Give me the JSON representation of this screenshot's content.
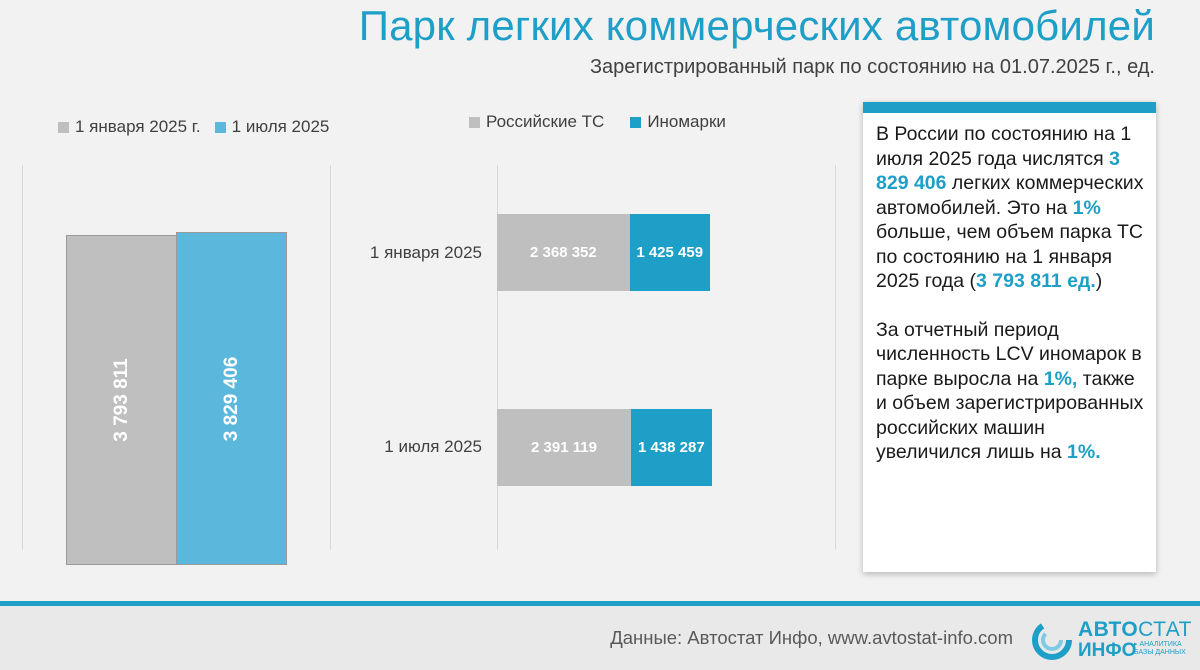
{
  "header": {
    "title": "Парк легких коммерческих автомобилей",
    "subtitle": "Зарегистрированный парк по состоянию на 01.07.2025 г., ед."
  },
  "colors": {
    "accent": "#1e9fc7",
    "gray_bar": "#bfbfbf",
    "light_blue_bar": "#5bb8dc",
    "dark_blue_bar": "#1e9fc7"
  },
  "chart_data": [
    {
      "type": "bar",
      "orientation": "vertical",
      "categories": [
        "1 января 2025 г.",
        "1 июля 2025"
      ],
      "values": [
        3793811,
        3829406
      ],
      "value_labels": [
        "3 793 811",
        "3 829 406"
      ],
      "legend": [
        "1 января 2025 г.",
        "1 июля 2025"
      ],
      "legend_position": "top-left",
      "ylim": [
        0,
        4600000
      ]
    },
    {
      "type": "bar",
      "orientation": "horizontal",
      "stacked": true,
      "categories": [
        "1 января 2025",
        "1 июля 2025"
      ],
      "series": [
        {
          "name": "Российские ТС",
          "values": [
            2368352,
            2391119
          ],
          "labels": [
            "2 368 352",
            "2 391 119"
          ]
        },
        {
          "name": "Иномарки",
          "values": [
            1425459,
            1438287
          ],
          "labels": [
            "1 425 459",
            "1 438 287"
          ]
        }
      ],
      "legend_position": "top"
    }
  ],
  "panel": {
    "p1_a": "В России по состоянию на 1 июля 2025 года числятся ",
    "p1_b": "3 829 406",
    "p1_c": " легких коммерческих автомобилей. Это на ",
    "p1_d": "1%",
    "p1_e": " больше, чем объем парка ТС по состоянию на 1 января 2025 года (",
    "p1_f": "3 793 811 ед.",
    "p1_g": ")",
    "p2_a": "За отчетный период численность LCV иномарок в парке выросла на ",
    "p2_b": "1%,",
    "p2_c": " также и объем зарегистрированных российских машин увеличился лишь на ",
    "p2_d": "1%."
  },
  "footer": {
    "source": "Данные: Автостат Инфо, www.avtostat-info.com",
    "logo_a": "АВТО",
    "logo_b": "СТАТ",
    "logo_c": "ИНФО",
    "logo_small": "▸ АНАЛИТИКА БАЗЫ ДАННЫХ"
  }
}
